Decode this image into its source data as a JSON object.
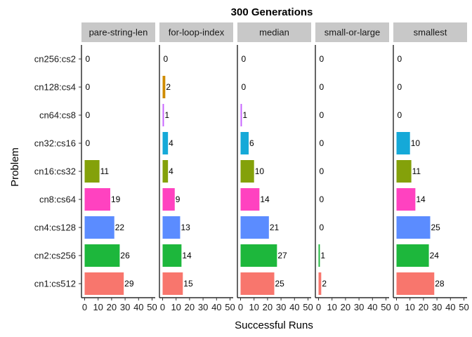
{
  "chart_data": {
    "type": "bar",
    "orientation": "horizontal",
    "title": "300 Generations",
    "xlabel": "Successful Runs",
    "ylabel": "Problem",
    "xlim": [
      0,
      50
    ],
    "xticks": [
      0,
      10,
      20,
      30,
      40,
      50
    ],
    "categories": [
      "cn1:cs512",
      "cn2:cs256",
      "cn4:cs128",
      "cn8:cs64",
      "cn16:cs32",
      "cn32:cs16",
      "cn64:cs8",
      "cn128:cs4",
      "cn256:cs2"
    ],
    "category_colors": [
      "#F8766D",
      "#1DB73C",
      "#5B8CFF",
      "#FF42C0",
      "#84A10A",
      "#15A9D8",
      "#C661FF",
      "#CF8B00",
      "#00C08B"
    ],
    "panels": [
      {
        "strip": "pare-string-len",
        "values": [
          29,
          26,
          22,
          19,
          11,
          0,
          0,
          0,
          0
        ]
      },
      {
        "strip": "for-loop-index",
        "values": [
          15,
          14,
          13,
          9,
          4,
          4,
          1,
          2,
          0
        ]
      },
      {
        "strip": "median",
        "values": [
          25,
          27,
          21,
          14,
          10,
          6,
          1,
          0,
          0
        ]
      },
      {
        "strip": "small-or-large",
        "values": [
          2,
          1,
          0,
          0,
          0,
          0,
          0,
          0,
          0
        ]
      },
      {
        "strip": "smallest",
        "values": [
          28,
          24,
          25,
          14,
          11,
          10,
          0,
          0,
          0
        ]
      }
    ],
    "grid": false,
    "legend": "none"
  }
}
